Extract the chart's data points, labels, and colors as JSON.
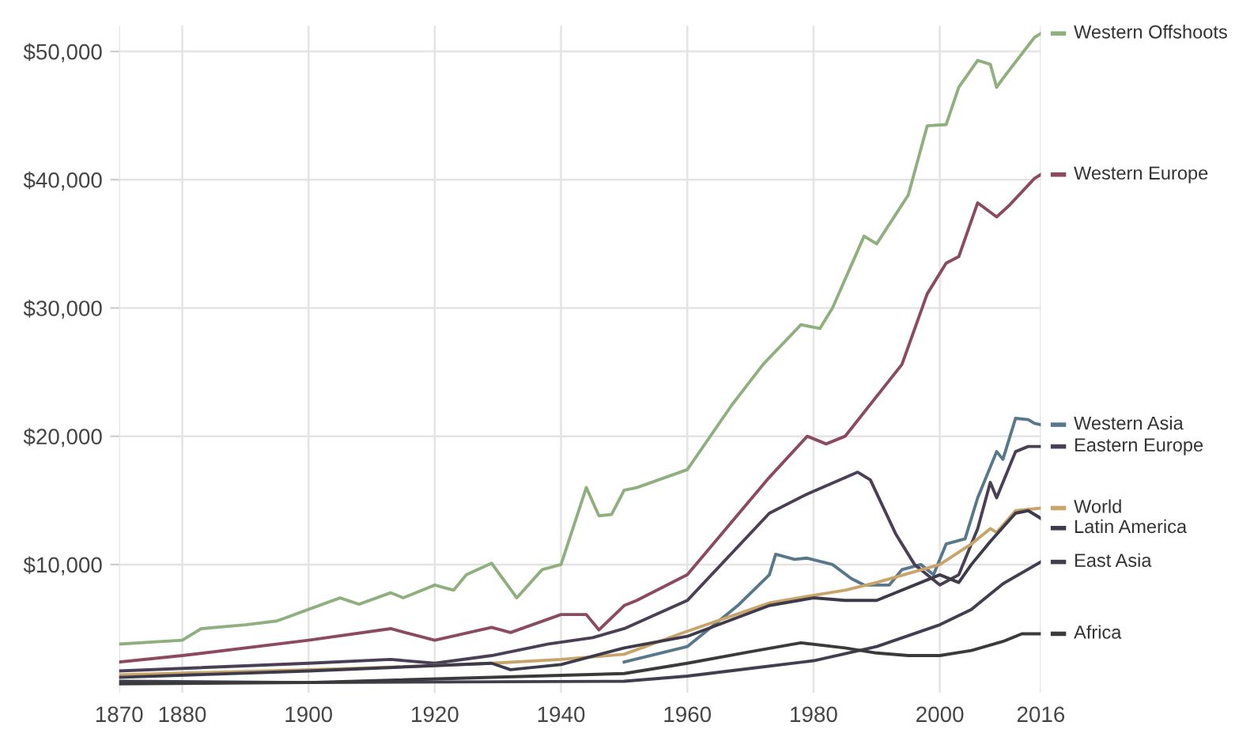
{
  "chart_data": {
    "type": "line",
    "xlim": [
      1870,
      2016
    ],
    "xticks": [
      1870,
      1880,
      1900,
      1920,
      1940,
      1960,
      1980,
      2000,
      2016
    ],
    "ylim": [
      0,
      52000
    ],
    "yticks": [
      {
        "value": 10000,
        "label": "$10,000"
      },
      {
        "value": 20000,
        "label": "$20,000"
      },
      {
        "value": 30000,
        "label": "$30,000"
      },
      {
        "value": 40000,
        "label": "$40,000"
      },
      {
        "value": 50000,
        "label": "$50,000"
      }
    ],
    "grid": true,
    "legend": "right",
    "marker": "none",
    "line_style": "solid",
    "series": [
      {
        "name": "Western Offshoots",
        "color": "#8fb07e",
        "x": [
          1870,
          1880,
          1883,
          1890,
          1895,
          1900,
          1905,
          1908,
          1913,
          1915,
          1920,
          1923,
          1925,
          1929,
          1933,
          1937,
          1940,
          1944,
          1946,
          1948,
          1950,
          1952,
          1960,
          1967,
          1972,
          1978,
          1981,
          1983,
          1988,
          1990,
          1995,
          1998,
          2001,
          2003,
          2006,
          2008,
          2009,
          2010,
          2015,
          2016
        ],
        "values": [
          3800,
          4100,
          5000,
          5300,
          5600,
          6500,
          7400,
          6900,
          7800,
          7400,
          8400,
          8000,
          9200,
          10100,
          7400,
          9600,
          10000,
          16000,
          13800,
          13900,
          15800,
          16000,
          17400,
          22400,
          25600,
          28700,
          28400,
          30000,
          35600,
          35000,
          38800,
          44200,
          44300,
          47200,
          49300,
          49000,
          47200,
          47900,
          51100,
          51400
        ]
      },
      {
        "name": "Western Europe",
        "color": "#8b4a5e",
        "x": [
          1870,
          1880,
          1900,
          1913,
          1920,
          1929,
          1932,
          1940,
          1944,
          1946,
          1950,
          1952,
          1960,
          1973,
          1979,
          1982,
          1985,
          1994,
          1998,
          2001,
          2003,
          2006,
          2009,
          2011,
          2015,
          2016
        ],
        "values": [
          2400,
          2900,
          4100,
          5000,
          4100,
          5100,
          4700,
          6100,
          6100,
          4900,
          6800,
          7200,
          9200,
          16800,
          20000,
          19400,
          20000,
          25600,
          31100,
          33500,
          34000,
          38200,
          37100,
          38000,
          40100,
          40400
        ]
      },
      {
        "name": "Western Asia",
        "color": "#56788a",
        "x": [
          1950,
          1960,
          1968,
          1973,
          1974,
          1977,
          1979,
          1983,
          1986,
          1988,
          1992,
          1994,
          1997,
          1999,
          2001,
          2004,
          2006,
          2009,
          2010,
          2012,
          2014,
          2015,
          2016
        ],
        "values": [
          2400,
          3600,
          6800,
          9200,
          10800,
          10400,
          10500,
          10000,
          8900,
          8400,
          8400,
          9600,
          10000,
          9200,
          11600,
          12000,
          15200,
          18800,
          18200,
          21400,
          21300,
          21000,
          20900
        ]
      },
      {
        "name": "Eastern Europe",
        "color": "#4a3f55",
        "x": [
          1870,
          1900,
          1913,
          1920,
          1929,
          1938,
          1945,
          1950,
          1960,
          1973,
          1979,
          1987,
          1989,
          1993,
          1996,
          2000,
          2003,
          2006,
          2008,
          2009,
          2012,
          2014,
          2016
        ],
        "values": [
          1700,
          2300,
          2600,
          2300,
          2900,
          3800,
          4300,
          5000,
          7200,
          14000,
          15500,
          17200,
          16600,
          12400,
          10000,
          8400,
          9200,
          12800,
          16400,
          15200,
          18800,
          19200,
          19200
        ]
      },
      {
        "name": "World",
        "color": "#c9a46a",
        "x": [
          1870,
          1900,
          1913,
          1929,
          1940,
          1950,
          1960,
          1973,
          1980,
          1985,
          1990,
          2000,
          2005,
          2008,
          2009,
          2012,
          2016
        ],
        "values": [
          1400,
          1800,
          2000,
          2300,
          2600,
          3000,
          4800,
          7000,
          7600,
          8000,
          8600,
          10000,
          11600,
          12800,
          12500,
          14200,
          14400
        ]
      },
      {
        "name": "Latin America",
        "color": "#3d3a4a",
        "x": [
          1870,
          1900,
          1929,
          1932,
          1940,
          1950,
          1960,
          1973,
          1980,
          1985,
          1990,
          2000,
          2003,
          2005,
          2008,
          2012,
          2014,
          2016
        ],
        "values": [
          1200,
          1700,
          2300,
          1800,
          2200,
          3500,
          4400,
          6800,
          7400,
          7200,
          7200,
          9200,
          8600,
          10000,
          11800,
          14000,
          14200,
          13600
        ]
      },
      {
        "name": "East Asia",
        "color": "#3f3f4f",
        "x": [
          1870,
          1900,
          1950,
          1960,
          1970,
          1980,
          1990,
          2000,
          2005,
          2010,
          2016
        ],
        "values": [
          900,
          800,
          900,
          1300,
          1900,
          2500,
          3600,
          5300,
          6500,
          8500,
          10200
        ]
      },
      {
        "name": "Africa",
        "color": "#3a3a3a",
        "x": [
          1870,
          1900,
          1950,
          1960,
          1970,
          1978,
          1985,
          1990,
          1995,
          2000,
          2005,
          2010,
          2013,
          2016
        ],
        "values": [
          700,
          800,
          1500,
          2300,
          3200,
          3900,
          3500,
          3100,
          2900,
          2900,
          3300,
          4000,
          4600,
          4600
        ]
      }
    ]
  }
}
